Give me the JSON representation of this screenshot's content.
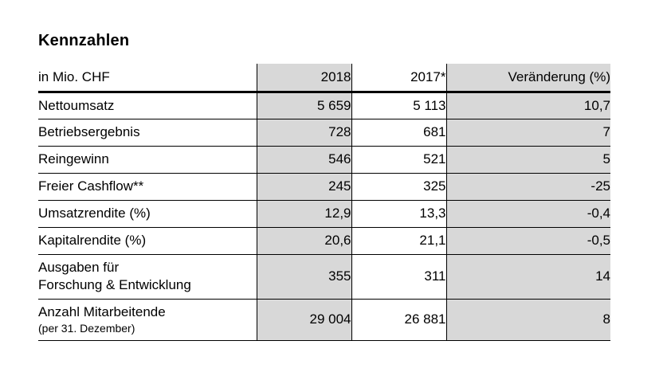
{
  "title": "Kennzahlen",
  "table": {
    "unit_header": "in Mio. CHF",
    "columns": [
      "in Mio. CHF",
      "2018",
      "2017*",
      "Veränderung (%)"
    ],
    "rows": [
      {
        "label_lines": [
          "Nettoumsatz"
        ],
        "sublabel": "",
        "values": [
          "5 659",
          "5 113",
          "10,7"
        ]
      },
      {
        "label_lines": [
          "Betriebsergebnis"
        ],
        "sublabel": "",
        "values": [
          "728",
          "681",
          "7"
        ]
      },
      {
        "label_lines": [
          "Reingewinn"
        ],
        "sublabel": "",
        "values": [
          "546",
          "521",
          "5"
        ]
      },
      {
        "label_lines": [
          "Freier Cashflow**"
        ],
        "sublabel": "",
        "values": [
          "245",
          "325",
          "-25"
        ]
      },
      {
        "label_lines": [
          "Umsatzrendite (%)"
        ],
        "sublabel": "",
        "values": [
          "12,9",
          "13,3",
          "-0,4"
        ]
      },
      {
        "label_lines": [
          "Kapitalrendite (%)"
        ],
        "sublabel": "",
        "values": [
          "20,6",
          "21,1",
          "-0,5"
        ]
      },
      {
        "label_lines": [
          "Ausgaben für",
          "Forschung & Entwicklung"
        ],
        "sublabel": "",
        "values": [
          "355",
          "311",
          "14"
        ]
      },
      {
        "label_lines": [
          "Anzahl Mitarbeitende"
        ],
        "sublabel": "(per 31. Dezember)",
        "values": [
          "29 004",
          "26 881",
          "8"
        ]
      }
    ]
  },
  "colors": {
    "shaded_column_bg": "#d8d8d8",
    "border": "#000000",
    "text": "#000000",
    "background": "#ffffff"
  }
}
